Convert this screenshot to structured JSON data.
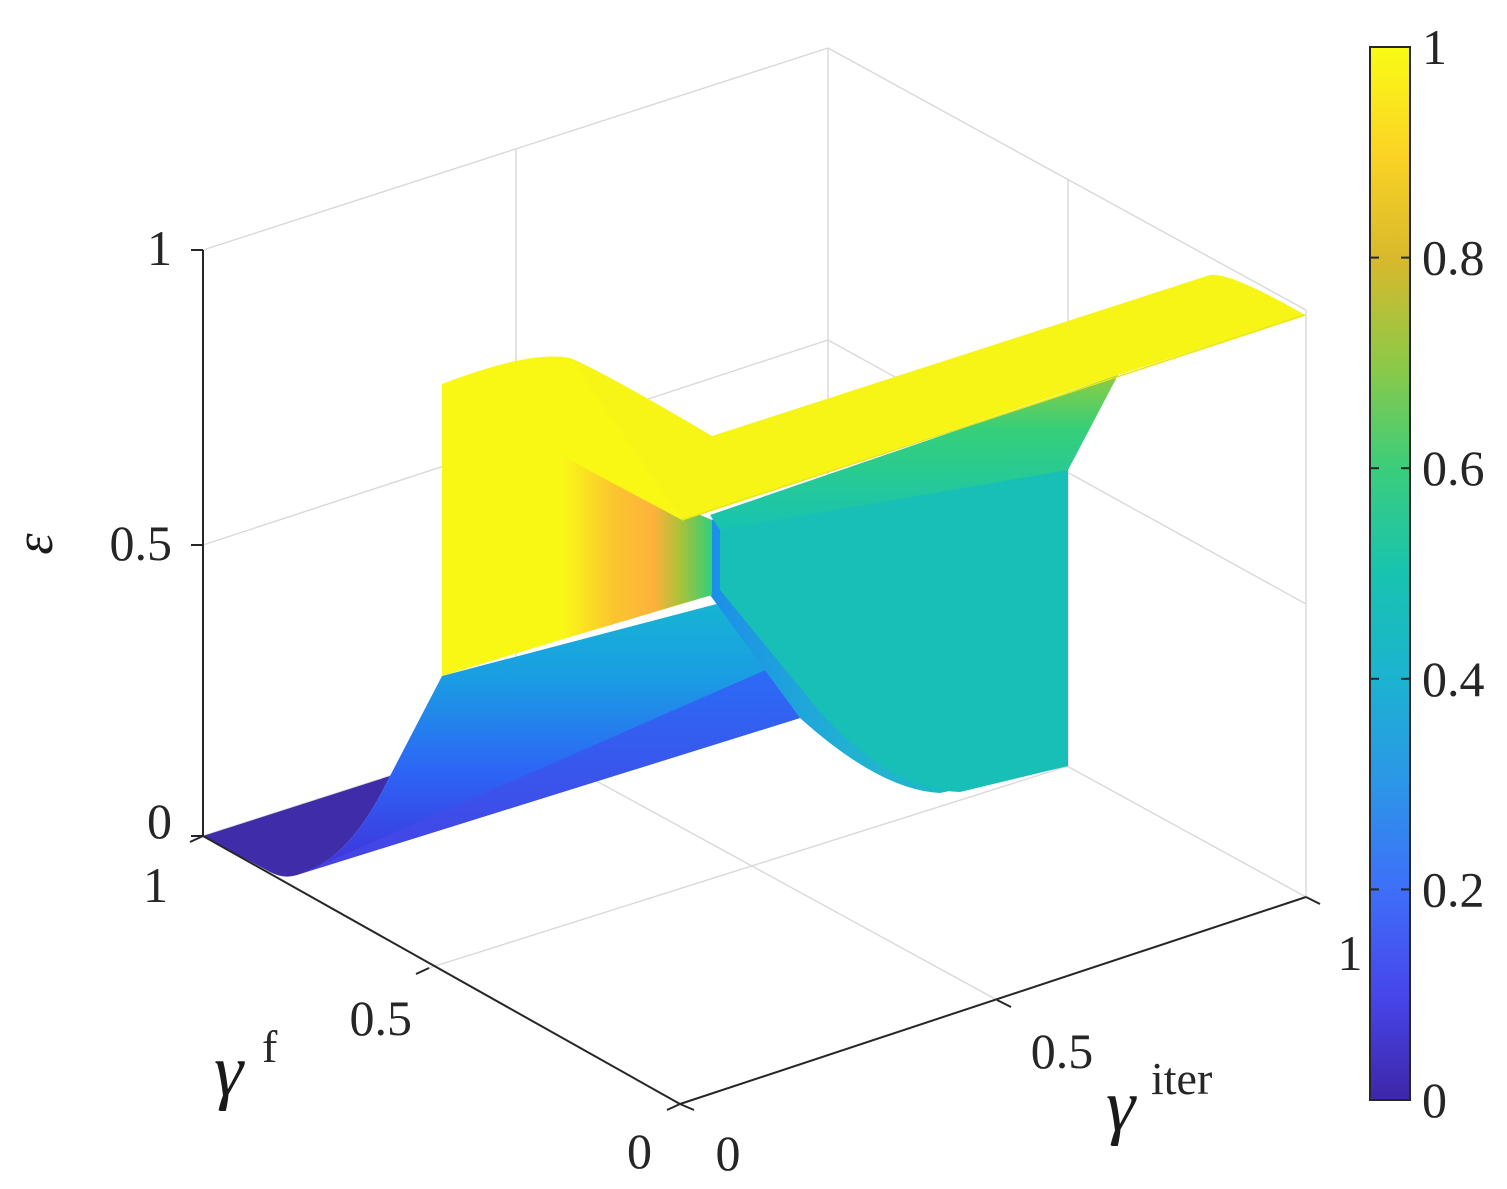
{
  "chart_data": {
    "type": "surface",
    "colormap": "parula",
    "axes": {
      "x": {
        "label": "γ",
        "label_sup": "iter",
        "ticks": [
          0,
          0.5,
          1
        ],
        "tick_labels": [
          "0",
          "0.5",
          "1"
        ],
        "lim": [
          0,
          1
        ]
      },
      "y": {
        "label": "γ",
        "label_sup": "f",
        "ticks": [
          0,
          0.5,
          1
        ],
        "tick_labels": [
          "0",
          "0.5",
          "1"
        ],
        "lim": [
          0,
          1
        ]
      },
      "z": {
        "label": "ε",
        "ticks": [
          0,
          0.5,
          1
        ],
        "tick_labels": [
          "0",
          "0.5",
          "1"
        ],
        "lim": [
          0,
          1
        ]
      }
    },
    "grid": true,
    "box": true,
    "colorbar": {
      "location": "right",
      "ticks": [
        0,
        0.2,
        0.4,
        0.6,
        0.8,
        1
      ],
      "tick_labels": [
        "0",
        "0.2",
        "0.4",
        "0.6",
        "0.8",
        "1"
      ],
      "lim": [
        0,
        1
      ]
    },
    "surface_levels": {
      "low_plateau": 0.0,
      "middle_plateau": 0.5,
      "high_plateau": 1.0
    }
  }
}
